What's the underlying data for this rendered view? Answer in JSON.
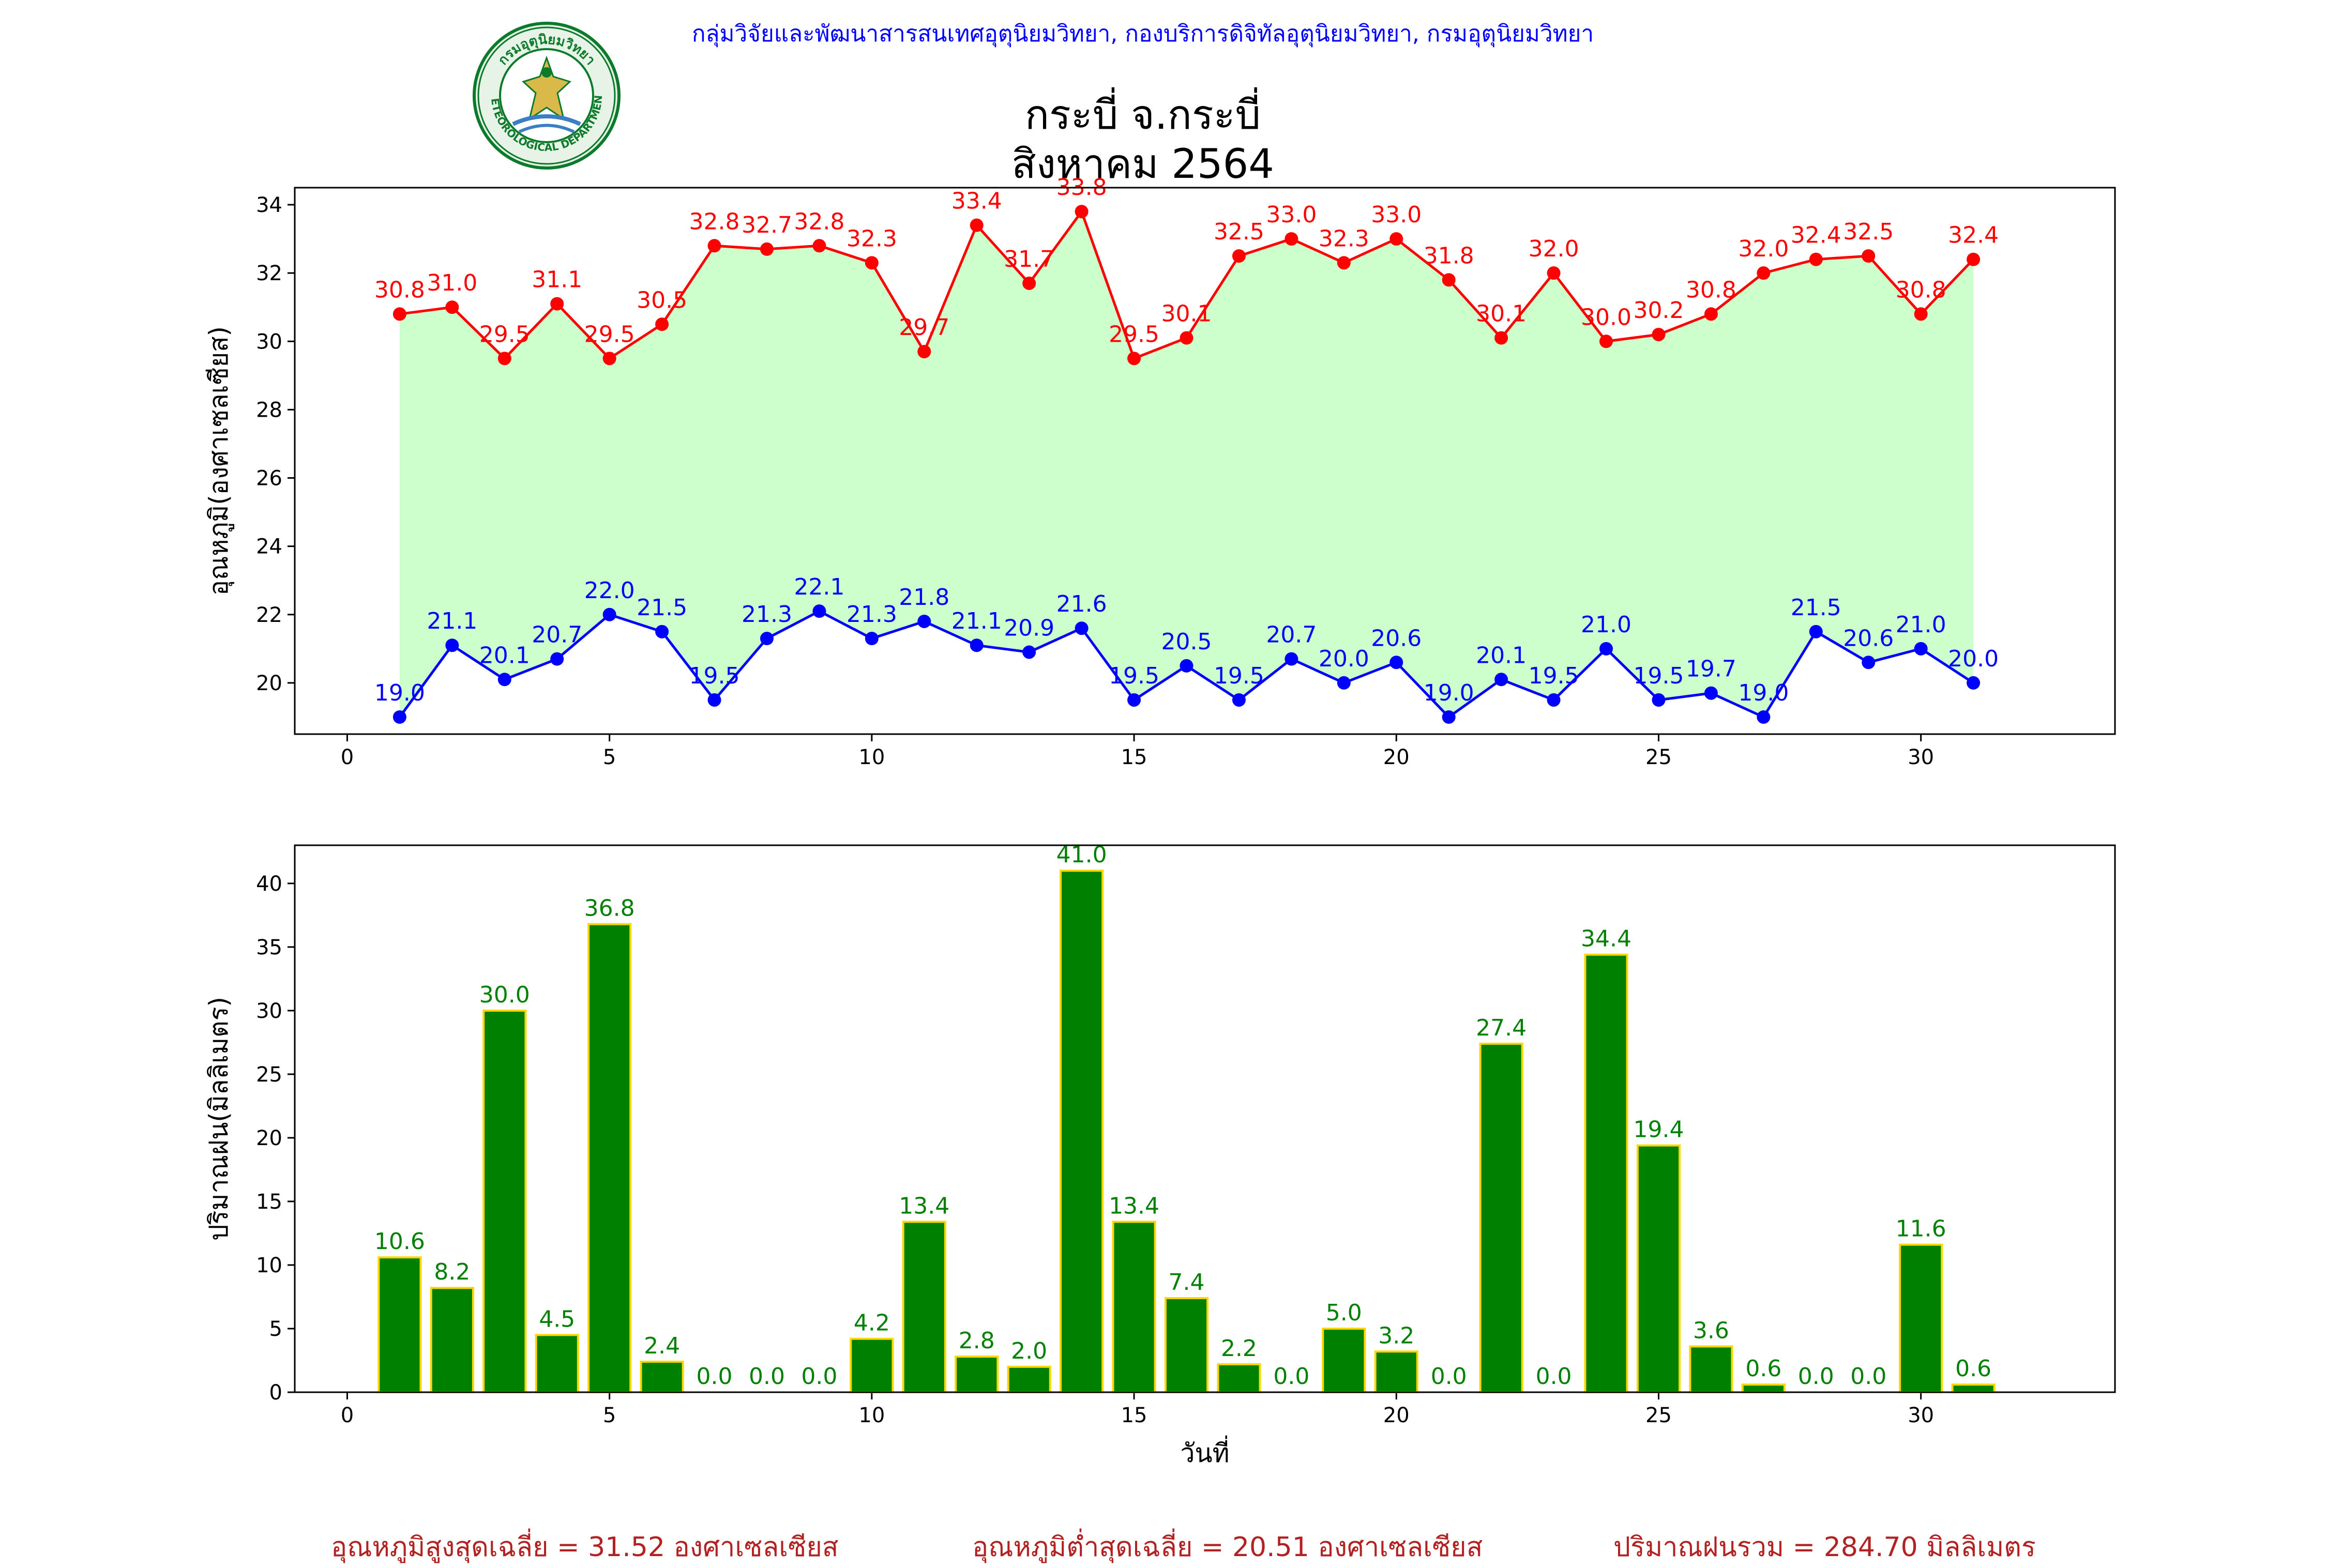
{
  "header": {
    "org_line": "กลุ่มวิจัยและพัฒนาสารสนเทศอุตุนิยมวิทยา, กองบริการดิจิทัลอุตุนิยมวิทยา, กรมอุตุนิยมวิทยา",
    "title_line1": "กระบี่ จ.กระบี่",
    "title_line2": "สิงหาคม 2564",
    "logo": {
      "icon": "tmd-seal-logo",
      "text_top": "กรมอุตุนิยมวิทยา",
      "text_bottom": "METEOROLOGICAL DEPARTMENT"
    }
  },
  "summary": {
    "avg_max": "อุณหภูมิสูงสุดเฉลี่ย = 31.52 องศาเซลเซียส",
    "avg_min": "อุณหภูมิต่ำสุดเฉลี่ย = 20.51 องศาเซลเซียส",
    "rain_total": "ปริมาณฝนรวม = 284.70 มิลลิเมตร"
  },
  "chart_data": [
    {
      "type": "line",
      "ylabel": "อุณหภูมิ(องศาเซลเซียส)",
      "xlabel": "",
      "xlim": [
        -1,
        33.7
      ],
      "ylim": [
        18.5,
        34.5
      ],
      "xticks": [
        0,
        5,
        10,
        15,
        20,
        25,
        30
      ],
      "yticks": [
        20,
        22,
        24,
        26,
        28,
        30,
        32,
        34
      ],
      "fill_between_series": true,
      "fill_color": "#ccffcc",
      "x": [
        1,
        2,
        3,
        4,
        5,
        6,
        7,
        8,
        9,
        10,
        11,
        12,
        13,
        14,
        15,
        16,
        17,
        18,
        19,
        20,
        21,
        22,
        23,
        24,
        25,
        26,
        27,
        28,
        29,
        30,
        31
      ],
      "series": [
        {
          "color": "#ff0000",
          "values": [
            30.8,
            31.0,
            29.5,
            31.1,
            29.5,
            30.5,
            32.8,
            32.7,
            32.8,
            32.3,
            29.7,
            33.4,
            31.7,
            33.8,
            29.5,
            30.1,
            32.5,
            33.0,
            32.3,
            33.0,
            31.8,
            30.1,
            32.0,
            30.0,
            30.2,
            30.8,
            32.0,
            32.4,
            32.5,
            30.8,
            32.4
          ]
        },
        {
          "color": "#0000ff",
          "values": [
            19.0,
            21.1,
            20.1,
            20.7,
            22.0,
            21.5,
            19.5,
            21.3,
            22.1,
            21.3,
            21.8,
            21.1,
            20.9,
            21.6,
            19.5,
            20.5,
            19.5,
            20.7,
            20.0,
            20.6,
            19.0,
            20.1,
            19.5,
            21.0,
            19.5,
            19.7,
            19.0,
            21.5,
            20.6,
            21.0,
            20.0
          ]
        }
      ]
    },
    {
      "type": "bar",
      "ylabel": "ปริมาณฝน(มิลลิเมตร)",
      "xlabel": "วันที่",
      "xlim": [
        -1,
        33.7
      ],
      "ylim": [
        0,
        43
      ],
      "xticks": [
        0,
        5,
        10,
        15,
        20,
        25,
        30
      ],
      "yticks": [
        0,
        5,
        10,
        15,
        20,
        25,
        30,
        35,
        40
      ],
      "bar_color": "#008000",
      "bar_edge_color": "#ffd700",
      "label_color": "#008000",
      "x": [
        1,
        2,
        3,
        4,
        5,
        6,
        7,
        8,
        9,
        10,
        11,
        12,
        13,
        14,
        15,
        16,
        17,
        18,
        19,
        20,
        21,
        22,
        23,
        24,
        25,
        26,
        27,
        28,
        29,
        30,
        31
      ],
      "values": [
        10.6,
        8.2,
        30.0,
        4.5,
        36.8,
        2.4,
        0.0,
        0.0,
        0.0,
        4.2,
        13.4,
        2.8,
        2.0,
        41.0,
        13.4,
        7.4,
        2.2,
        0.0,
        5.0,
        3.2,
        0.0,
        27.4,
        0.0,
        34.4,
        19.4,
        3.6,
        0.6,
        0.0,
        0.0,
        11.6,
        0.6
      ]
    }
  ]
}
